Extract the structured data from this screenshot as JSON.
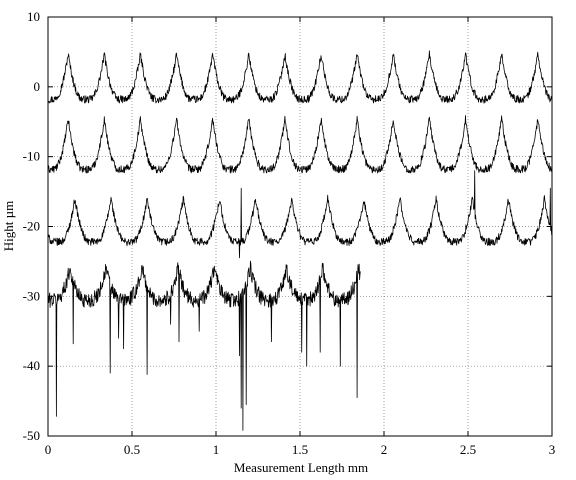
{
  "chart_data": {
    "type": "line",
    "title": "",
    "xlabel": "Measurement Length mm",
    "ylabel": "Hight µm",
    "xlim": [
      0,
      3
    ],
    "ylim": [
      -50,
      10
    ],
    "grid": true,
    "grid_style": "dotted",
    "legend": "none",
    "line_color": "#000000",
    "xticks": [
      0,
      0.5,
      1,
      1.5,
      2,
      2.5,
      3
    ],
    "xtick_labels": [
      "0",
      "0.5",
      "1",
      "1.5",
      "2",
      "2.5",
      "3"
    ],
    "yticks": [
      10,
      0,
      -10,
      -20,
      -30,
      -40,
      -50
    ],
    "ytick_labels": [
      "10",
      "0",
      "-10",
      "-20",
      "-30",
      "-40",
      "-50"
    ],
    "series": [
      {
        "x_start": 0,
        "x_end": 3,
        "period": 0.215,
        "first_peak": 0.12,
        "baseline": -1.8,
        "peak": 4.7,
        "spikes": []
      },
      {
        "x_start": 0,
        "x_end": 3,
        "period": 0.215,
        "first_peak": 0.12,
        "baseline": -11.8,
        "peak": -4.6,
        "spikes": []
      },
      {
        "x_start": 0,
        "x_end": 3,
        "period": 0.215,
        "first_peak": 0.16,
        "baseline": -22.2,
        "peak": -16.0,
        "spikes": [
          {
            "x": 1.14,
            "y": -24.5
          },
          {
            "x": 1.15,
            "y": -14.5
          },
          {
            "x": 2.54,
            "y": -12.0
          },
          {
            "x": 2.99,
            "y": -14.5
          }
        ]
      },
      {
        "x_start": 0,
        "x_end": 1.86,
        "period": 0.215,
        "first_peak": 0.13,
        "baseline": -30.5,
        "peak": -26.0,
        "spikes": [
          {
            "x": 0.05,
            "y": -47.2
          },
          {
            "x": 0.15,
            "y": -36.8
          },
          {
            "x": 0.37,
            "y": -41.0
          },
          {
            "x": 0.42,
            "y": -36.0
          },
          {
            "x": 0.45,
            "y": -37.5
          },
          {
            "x": 0.59,
            "y": -41.2
          },
          {
            "x": 0.73,
            "y": -34.0
          },
          {
            "x": 0.78,
            "y": -36.5
          },
          {
            "x": 0.9,
            "y": -35.0
          },
          {
            "x": 1.14,
            "y": -38.5
          },
          {
            "x": 1.15,
            "y": -46.0
          },
          {
            "x": 1.16,
            "y": -49.2
          },
          {
            "x": 1.18,
            "y": -45.5
          },
          {
            "x": 1.33,
            "y": -36.5
          },
          {
            "x": 1.51,
            "y": -38.0
          },
          {
            "x": 1.54,
            "y": -40.0
          },
          {
            "x": 1.62,
            "y": -38.0
          },
          {
            "x": 1.74,
            "y": -40.0
          },
          {
            "x": 1.84,
            "y": -44.5
          }
        ]
      }
    ]
  }
}
